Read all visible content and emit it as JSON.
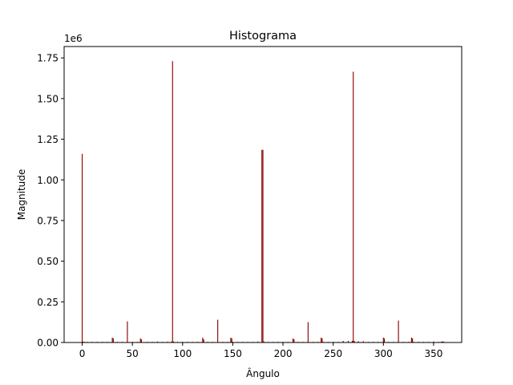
{
  "colors": {
    "bar": "#8b0000",
    "axis": "#000000",
    "background": "#ffffff"
  },
  "chart_data": {
    "type": "bar",
    "title": "Histograma",
    "xlabel": "Ângulo",
    "ylabel": "Magnitude",
    "offset_label": "1e6",
    "xlim": [
      -18,
      378
    ],
    "ylim": [
      0,
      1.82
    ],
    "x_ticks": [
      0,
      50,
      100,
      150,
      200,
      250,
      300,
      350
    ],
    "x_tick_labels": [
      "0",
      "50",
      "100",
      "150",
      "200",
      "250",
      "300",
      "350"
    ],
    "y_ticks": [
      0,
      0.25,
      0.5,
      0.75,
      1.0,
      1.25,
      1.5,
      1.75
    ],
    "y_tick_labels": [
      "0.00",
      "0.25",
      "0.50",
      "0.75",
      "1.00",
      "1.25",
      "1.50",
      "1.75"
    ],
    "series": [
      {
        "name": "Magnitude",
        "x": [
          0,
          1,
          2,
          5,
          10,
          15,
          20,
          25,
          30,
          31,
          35,
          40,
          45,
          50,
          55,
          58,
          59,
          65,
          70,
          75,
          80,
          85,
          89,
          90,
          91,
          95,
          100,
          105,
          110,
          115,
          120,
          121,
          125,
          130,
          135,
          140,
          145,
          148,
          149,
          150,
          155,
          160,
          165,
          170,
          175,
          179,
          180,
          181,
          185,
          190,
          195,
          200,
          205,
          210,
          211,
          215,
          220,
          225,
          230,
          235,
          238,
          239,
          240,
          245,
          250,
          255,
          260,
          265,
          269,
          270,
          271,
          275,
          280,
          285,
          290,
          295,
          300,
          301,
          305,
          310,
          315,
          320,
          325,
          328,
          329,
          330,
          335,
          340,
          345,
          350,
          355,
          358,
          359,
          360
        ],
        "values": [
          1.16,
          0.005,
          0.004,
          0.004,
          0.004,
          0.004,
          0.004,
          0.004,
          0.03,
          0.025,
          0.004,
          0.004,
          0.13,
          0.004,
          0.004,
          0.025,
          0.02,
          0.004,
          0.004,
          0.006,
          0.004,
          0.005,
          0.006,
          1.73,
          0.006,
          0.004,
          0.004,
          0.004,
          0.004,
          0.004,
          0.03,
          0.02,
          0.004,
          0.004,
          0.14,
          0.004,
          0.004,
          0.03,
          0.025,
          0.004,
          0.004,
          0.004,
          0.004,
          0.004,
          0.006,
          1.185,
          1.185,
          0.006,
          0.004,
          0.004,
          0.004,
          0.004,
          0.004,
          0.025,
          0.02,
          0.004,
          0.004,
          0.125,
          0.004,
          0.004,
          0.03,
          0.025,
          0.004,
          0.004,
          0.004,
          0.004,
          0.01,
          0.01,
          0.01,
          1.665,
          0.01,
          0.008,
          0.008,
          0.004,
          0.004,
          0.004,
          0.03,
          0.025,
          0.004,
          0.004,
          0.135,
          0.004,
          0.004,
          0.03,
          0.025,
          0.004,
          0.004,
          0.004,
          0.004,
          0.006,
          0.004,
          0.006,
          0.006,
          0.006
        ]
      }
    ],
    "grid": false,
    "legend": "none"
  }
}
